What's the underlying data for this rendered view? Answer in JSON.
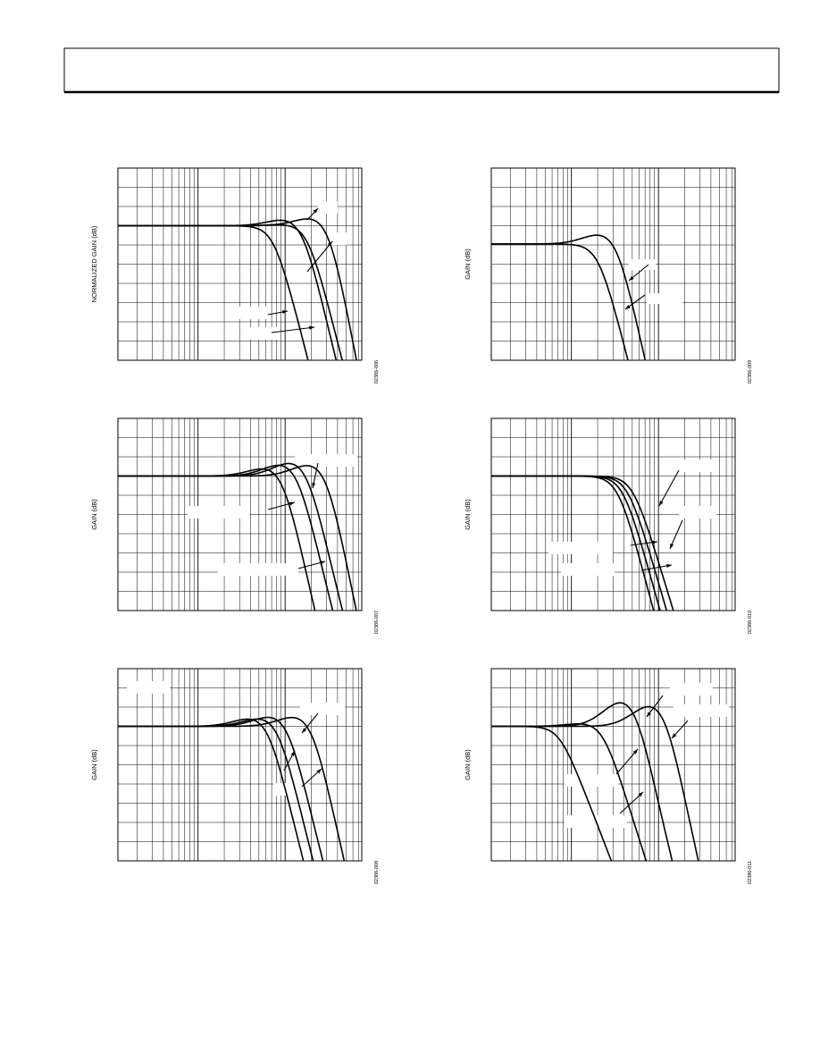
{
  "figures": [
    {
      "y_axis_label": "NORMALIZED GAIN (dB)",
      "figure_code": "02386-006"
    },
    {
      "y_axis_label": "GAIN (dB)",
      "figure_code": "02386-009"
    },
    {
      "y_axis_label": "GAIN (dB)",
      "figure_code": "02386-007"
    },
    {
      "y_axis_label": "GAIN (dB)",
      "figure_code": "02386-010"
    },
    {
      "y_axis_label": "GAIN (dB)",
      "figure_code": "02386-008"
    },
    {
      "y_axis_label": "GAIN (dB)",
      "figure_code": "02386-011"
    }
  ]
}
